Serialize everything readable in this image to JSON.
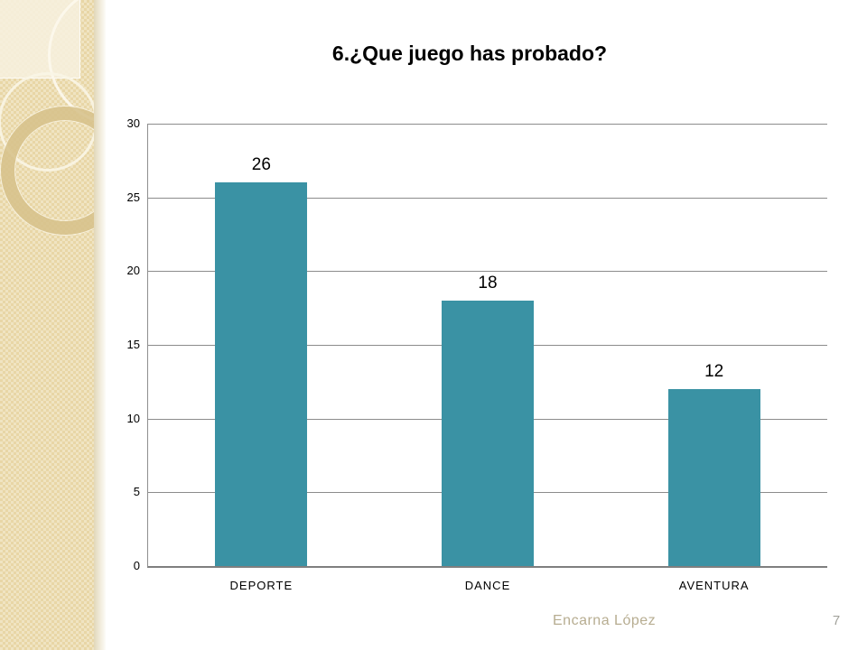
{
  "slide": {
    "title": "6.¿Que juego has probado?",
    "footer": {
      "author": "Encarna López",
      "page_number": "7"
    }
  },
  "chart_data": {
    "type": "bar",
    "title": "6.¿Que juego has probado?",
    "categories": [
      "DEPORTE",
      "DANCE",
      "AVENTURA"
    ],
    "values": [
      26,
      18,
      12
    ],
    "data_labels": [
      "26",
      "18",
      "12"
    ],
    "xlabel": "",
    "ylabel": "",
    "ylim": [
      0,
      30
    ],
    "y_ticks": [
      0,
      5,
      10,
      15,
      20,
      25,
      30
    ],
    "grid": true,
    "legend": false,
    "legend_position": "none",
    "bar_color": "#3a92a4",
    "gridline_color": "#8c8c8c",
    "axis_color": "#7f7f7f"
  }
}
